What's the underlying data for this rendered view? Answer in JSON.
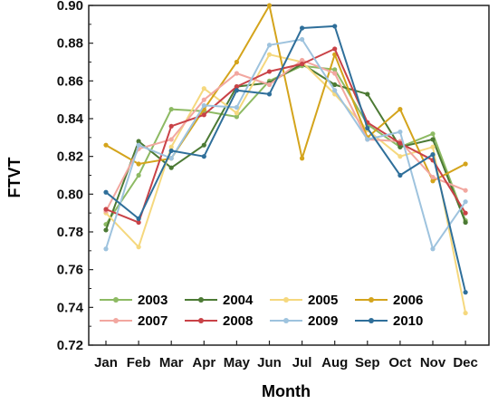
{
  "chart_data": {
    "type": "line",
    "title": "",
    "xlabel": "Month",
    "ylabel": "FTVT",
    "categories": [
      "Jan",
      "Feb",
      "Mar",
      "Apr",
      "May",
      "Jun",
      "Jul",
      "Aug",
      "Sep",
      "Oct",
      "Nov",
      "Dec"
    ],
    "ylim": [
      0.72,
      0.9
    ],
    "yticks": [
      "0.72",
      "0.74",
      "0.76",
      "0.78",
      "0.80",
      "0.82",
      "0.84",
      "0.86",
      "0.88",
      "0.90"
    ],
    "grid": false,
    "legend_position": "bottom-center",
    "series": [
      {
        "name": "2003",
        "color": "#8dba63",
        "values": [
          0.784,
          0.81,
          0.845,
          0.844,
          0.841,
          0.86,
          0.868,
          0.866,
          0.837,
          0.825,
          0.832,
          0.786
        ]
      },
      {
        "name": "2004",
        "color": "#4c7a34",
        "values": [
          0.781,
          0.828,
          0.814,
          0.826,
          0.857,
          0.859,
          0.869,
          0.858,
          0.853,
          0.825,
          0.829,
          0.785
        ]
      },
      {
        "name": "2005",
        "color": "#f5d87e",
        "values": [
          0.79,
          0.772,
          0.825,
          0.856,
          0.843,
          0.874,
          0.87,
          0.853,
          0.834,
          0.82,
          0.825,
          0.737
        ]
      },
      {
        "name": "2006",
        "color": "#d4a41c",
        "values": [
          0.826,
          0.816,
          0.819,
          0.845,
          0.87,
          0.9,
          0.819,
          0.874,
          0.83,
          0.845,
          0.807,
          0.816
        ]
      },
      {
        "name": "2007",
        "color": "#f2a7a0",
        "values": [
          0.791,
          0.824,
          0.829,
          0.85,
          0.864,
          0.858,
          0.871,
          0.864,
          0.829,
          0.828,
          0.809,
          0.802
        ]
      },
      {
        "name": "2008",
        "color": "#c94247",
        "values": [
          0.792,
          0.785,
          0.836,
          0.842,
          0.857,
          0.865,
          0.869,
          0.877,
          0.838,
          0.827,
          0.818,
          0.79
        ]
      },
      {
        "name": "2009",
        "color": "#9ec3de",
        "values": [
          0.771,
          0.826,
          0.819,
          0.847,
          0.846,
          0.879,
          0.882,
          0.855,
          0.829,
          0.833,
          0.771,
          0.796
        ]
      },
      {
        "name": "2010",
        "color": "#2f6f9a",
        "values": [
          0.801,
          0.787,
          0.823,
          0.82,
          0.855,
          0.853,
          0.888,
          0.889,
          0.835,
          0.81,
          0.821,
          0.748
        ]
      }
    ]
  }
}
